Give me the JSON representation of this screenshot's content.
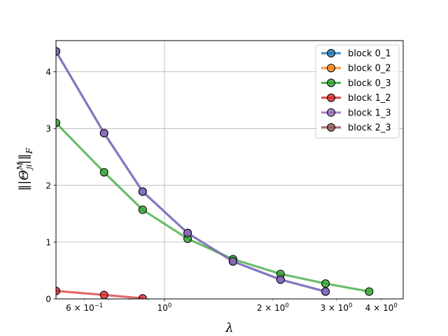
{
  "chart_data": {
    "type": "line",
    "xlabel": "λ",
    "ylabel": "‖|Θ_ji^M|‖_F",
    "xscale": "log",
    "xlim": [
      0.5,
      4.6
    ],
    "ylim": [
      0,
      4.55
    ],
    "grid": true,
    "legend_position": "top-right",
    "x_major_ticks": [
      {
        "value": 1,
        "label_base": "10",
        "label_exp": "0"
      }
    ],
    "x_minor_ticks": [
      {
        "value": 0.6,
        "label_base": "6 × 10",
        "label_exp": "−1"
      },
      {
        "value": 2,
        "label_base": "2 × 10",
        "label_exp": "0"
      },
      {
        "value": 3,
        "label_base": "3 × 10",
        "label_exp": "0"
      },
      {
        "value": 4,
        "label_base": "4 × 10",
        "label_exp": "0"
      }
    ],
    "x_unlabeled_minor_ticks": [
      0.7,
      0.8,
      0.9
    ],
    "y_ticks": [
      {
        "value": 0,
        "label": "0"
      },
      {
        "value": 1,
        "label": "1"
      },
      {
        "value": 2,
        "label": "2"
      },
      {
        "value": 3,
        "label": "3"
      },
      {
        "value": 4,
        "label": "4"
      }
    ],
    "series": [
      {
        "name": "block 0_1",
        "color": "#1f77b4",
        "x": [
          0.5,
          0.68,
          0.87,
          1.16,
          1.55,
          2.1,
          2.8
        ],
        "y": [
          4.36,
          2.92,
          1.89,
          1.16,
          0.66,
          0.34,
          0.13
        ]
      },
      {
        "name": "block 0_2",
        "color": "#ff7f0e",
        "x": [],
        "y": []
      },
      {
        "name": "block 0_3",
        "color": "#2ca02c",
        "x": [
          0.5,
          0.68,
          0.87,
          1.16,
          1.55,
          2.1,
          2.8,
          3.7
        ],
        "y": [
          3.1,
          2.23,
          1.57,
          1.06,
          0.7,
          0.44,
          0.27,
          0.13
        ]
      },
      {
        "name": "block 1_2",
        "color": "#d62728",
        "x": [
          0.5,
          0.68,
          0.87
        ],
        "y": [
          0.14,
          0.07,
          0.01
        ]
      },
      {
        "name": "block 1_3",
        "color": "#9467bd",
        "x": [
          0.5,
          0.68,
          0.87,
          1.16,
          1.55,
          2.1,
          2.8
        ],
        "y": [
          4.36,
          2.92,
          1.89,
          1.16,
          0.66,
          0.34,
          0.13
        ]
      },
      {
        "name": "block 2_3",
        "color": "#8c564b",
        "x": [],
        "y": []
      }
    ]
  }
}
